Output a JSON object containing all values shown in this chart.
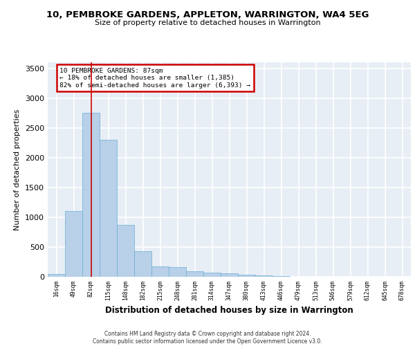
{
  "title1": "10, PEMBROKE GARDENS, APPLETON, WARRINGTON, WA4 5EG",
  "title2": "Size of property relative to detached houses in Warrington",
  "xlabel": "Distribution of detached houses by size in Warrington",
  "ylabel": "Number of detached properties",
  "bin_labels": [
    "16sqm",
    "49sqm",
    "82sqm",
    "115sqm",
    "148sqm",
    "182sqm",
    "215sqm",
    "248sqm",
    "281sqm",
    "314sqm",
    "347sqm",
    "380sqm",
    "413sqm",
    "446sqm",
    "479sqm",
    "513sqm",
    "546sqm",
    "579sqm",
    "612sqm",
    "645sqm",
    "678sqm"
  ],
  "bar_values": [
    50,
    1100,
    2750,
    2300,
    875,
    430,
    170,
    165,
    90,
    65,
    55,
    30,
    25,
    10,
    5,
    3,
    2,
    1,
    0,
    0,
    0
  ],
  "bar_color": "#b8d0e8",
  "bar_edge_color": "#6aaed6",
  "vline_x_index": 2,
  "vline_color": "#cc0000",
  "annotation_text": "10 PEMBROKE GARDENS: 87sqm\n← 18% of detached houses are smaller (1,385)\n82% of semi-detached houses are larger (6,393) →",
  "annotation_box_color": "#ffffff",
  "annotation_border_color": "#cc0000",
  "ylim": [
    0,
    3600
  ],
  "yticks": [
    0,
    500,
    1000,
    1500,
    2000,
    2500,
    3000,
    3500
  ],
  "background_color": "#e8eef5",
  "grid_color": "#ffffff",
  "footer": "Contains HM Land Registry data © Crown copyright and database right 2024.\nContains public sector information licensed under the Open Government Licence v3.0."
}
